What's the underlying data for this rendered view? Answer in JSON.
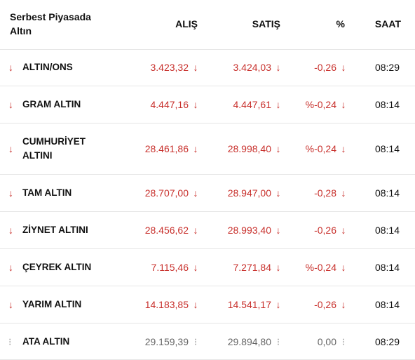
{
  "header": {
    "title": "Serbest Piyasada Altın",
    "col_alis": "ALIŞ",
    "col_satis": "SATIŞ",
    "col_pct": "%",
    "col_saat": "SAAT"
  },
  "icons": {
    "down": "↓",
    "neutral": "⁝"
  },
  "colors": {
    "down": "#c8302c",
    "neutral": "#9a9a9a"
  },
  "rows": [
    {
      "name": "ALTIN/ONS",
      "alis": "3.423,32",
      "satis": "3.424,03",
      "pct": "-0,26",
      "saat": "08:29",
      "trend": "down"
    },
    {
      "name": "GRAM ALTIN",
      "alis": "4.447,16",
      "satis": "4.447,61",
      "pct": "%-0,24",
      "saat": "08:14",
      "trend": "down"
    },
    {
      "name": "CUMHURİYET ALTINI",
      "alis": "28.461,86",
      "satis": "28.998,40",
      "pct": "%-0,24",
      "saat": "08:14",
      "trend": "down"
    },
    {
      "name": "TAM ALTIN",
      "alis": "28.707,00",
      "satis": "28.947,00",
      "pct": "-0,28",
      "saat": "08:14",
      "trend": "down"
    },
    {
      "name": "ZİYNET ALTINI",
      "alis": "28.456,62",
      "satis": "28.993,40",
      "pct": "-0,26",
      "saat": "08:14",
      "trend": "down"
    },
    {
      "name": "ÇEYREK ALTIN",
      "alis": "7.115,46",
      "satis": "7.271,84",
      "pct": "%-0,24",
      "saat": "08:14",
      "trend": "down"
    },
    {
      "name": "YARIM ALTIN",
      "alis": "14.183,85",
      "satis": "14.541,17",
      "pct": "-0,26",
      "saat": "08:14",
      "trend": "down"
    },
    {
      "name": "ATA ALTIN",
      "alis": "29.159,39",
      "satis": "29.894,80",
      "pct": "0,00",
      "saat": "08:29",
      "trend": "neutral"
    }
  ]
}
